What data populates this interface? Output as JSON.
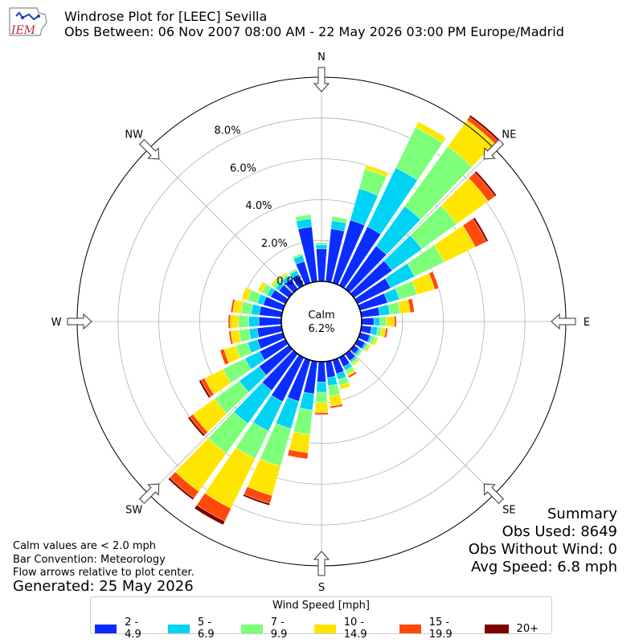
{
  "header": {
    "title": "Windrose Plot for [LEEC] Sevilla",
    "subtitle": "Obs Between: 06 Nov 2007 08:00 AM - 22 May 2026 03:00 PM Europe/Madrid",
    "logo_text": "IEM"
  },
  "summary": {
    "heading": "Summary",
    "obs_used": "Obs Used: 8649",
    "obs_without_wind": "Obs Without Wind: 0",
    "avg_speed": "Avg Speed: 6.8 mph"
  },
  "notes": {
    "calm_values": "Calm values are < 2.0 mph",
    "bar_convention": "Bar Convention: Meteorology",
    "flow_arrows": "Flow arrows relative to plot center.",
    "generated": "Generated: 25 May 2026"
  },
  "legend": {
    "title": "Wind Speed [mph]",
    "items": [
      {
        "label": "2 - 4.9",
        "color": "#0a2dff"
      },
      {
        "label": "5 - 6.9",
        "color": "#00d4f5"
      },
      {
        "label": "7 - 9.9",
        "color": "#7dff7a"
      },
      {
        "label": "10 - 14.9",
        "color": "#ffe600"
      },
      {
        "label": "15 - 19.9",
        "color": "#ff4a0a"
      },
      {
        "label": "20+",
        "color": "#7f0000"
      }
    ]
  },
  "chart_data": {
    "type": "windrose",
    "calm": {
      "label": "Calm",
      "value": "6.2%"
    },
    "radial_ticks": [
      "0.0%",
      "2.0%",
      "4.0%",
      "6.0%",
      "8.0%"
    ],
    "radial_tick_values": [
      0,
      2,
      4,
      6,
      8
    ],
    "rmax": 10,
    "compass_labels": [
      "N",
      "NE",
      "E",
      "SE",
      "S",
      "SW",
      "W",
      "NW"
    ],
    "bin_labels": [
      "2 - 4.9",
      "5 - 6.9",
      "7 - 9.9",
      "10 - 14.9",
      "15 - 19.9",
      "20+"
    ],
    "directions": [
      0,
      10,
      20,
      30,
      40,
      50,
      60,
      70,
      80,
      90,
      100,
      110,
      120,
      130,
      140,
      150,
      160,
      170,
      180,
      190,
      200,
      210,
      220,
      230,
      240,
      250,
      260,
      270,
      280,
      290,
      300,
      310,
      320,
      330,
      340,
      350
    ],
    "cumulative_percent": [
      [
        1.6,
        1.8,
        1.9,
        1.9,
        1.9,
        1.9
      ],
      [
        2.6,
        3.0,
        3.2,
        3.2,
        3.2,
        3.2
      ],
      [
        3.2,
        4.8,
        5.8,
        6.0,
        6.0,
        6.0
      ],
      [
        3.2,
        6.4,
        8.6,
        8.9,
        8.9,
        8.9
      ],
      [
        2.6,
        5.0,
        8.6,
        10.2,
        10.4,
        10.5
      ],
      [
        2.3,
        4.1,
        6.2,
        8.1,
        8.5,
        8.6
      ],
      [
        1.8,
        3.1,
        4.7,
        6.4,
        7.0,
        7.1
      ],
      [
        1.4,
        2.0,
        2.9,
        3.8,
        4.0,
        4.0
      ],
      [
        0.9,
        1.4,
        1.9,
        2.4,
        2.6,
        2.6
      ],
      [
        0.6,
        0.9,
        1.2,
        1.6,
        1.7,
        1.7
      ],
      [
        0.5,
        0.8,
        1.0,
        1.2,
        1.3,
        1.3
      ],
      [
        0.5,
        0.6,
        0.8,
        0.9,
        0.9,
        0.9
      ],
      [
        0.4,
        0.5,
        0.6,
        0.7,
        0.7,
        0.7
      ],
      [
        0.3,
        0.4,
        0.5,
        0.5,
        0.5,
        0.5
      ],
      [
        0.4,
        0.5,
        0.6,
        0.7,
        0.7,
        0.7
      ],
      [
        0.5,
        0.7,
        0.9,
        1.0,
        1.1,
        1.1
      ],
      [
        0.7,
        1.0,
        1.3,
        1.5,
        1.5,
        1.5
      ],
      [
        0.8,
        1.2,
        1.7,
        2.2,
        2.3,
        2.3
      ],
      [
        1.0,
        1.5,
        2.0,
        2.5,
        2.6,
        2.6
      ],
      [
        1.6,
        2.4,
        3.6,
        4.5,
        4.8,
        4.8
      ],
      [
        2.1,
        3.5,
        5.4,
        6.9,
        7.3,
        7.4
      ],
      [
        2.4,
        4.0,
        5.5,
        8.2,
        8.9,
        9.1
      ],
      [
        2.2,
        4.2,
        6.0,
        8.3,
        8.7,
        8.8
      ],
      [
        1.8,
        3.0,
        4.5,
        5.8,
        6.0,
        6.1
      ],
      [
        1.4,
        2.2,
        3.4,
        4.4,
        4.6,
        4.7
      ],
      [
        1.3,
        1.8,
        2.4,
        3.0,
        3.2,
        3.2
      ],
      [
        1.2,
        1.6,
        2.1,
        2.5,
        2.6,
        2.6
      ],
      [
        1.1,
        1.6,
        2.1,
        2.5,
        2.6,
        2.6
      ],
      [
        1.1,
        1.5,
        2.0,
        2.4,
        2.5,
        2.5
      ],
      [
        1.0,
        1.3,
        1.8,
        2.1,
        2.1,
        2.1
      ],
      [
        0.8,
        1.0,
        1.3,
        1.5,
        1.5,
        1.5
      ],
      [
        0.6,
        0.8,
        1.0,
        1.1,
        1.1,
        1.1
      ],
      [
        0.6,
        0.8,
        0.9,
        1.0,
        1.0,
        1.0
      ],
      [
        0.6,
        0.8,
        0.9,
        0.9,
        0.9,
        0.9
      ],
      [
        1.1,
        1.4,
        1.5,
        1.5,
        1.5,
        1.5
      ],
      [
        2.7,
        3.1,
        3.3,
        3.3,
        3.3,
        3.3
      ]
    ]
  }
}
